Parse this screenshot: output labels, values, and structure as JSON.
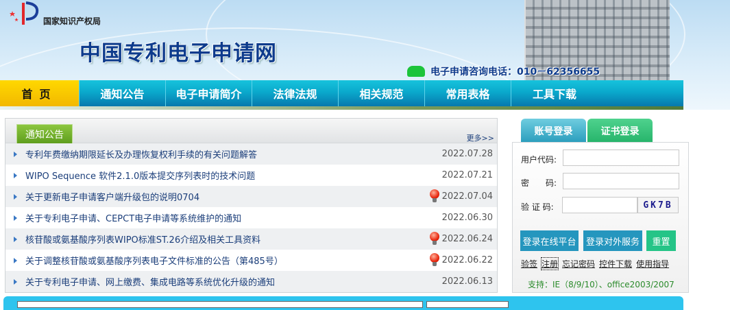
{
  "header": {
    "agency": "国家知识产权局",
    "site_title": "中国专利电子申请网",
    "phone_label": "电子申请咨询电话：010－62356655"
  },
  "nav": {
    "items": [
      {
        "label": "首页"
      },
      {
        "label": "通知公告"
      },
      {
        "label": "电子申请简介"
      },
      {
        "label": "法律法规"
      },
      {
        "label": "相关规范"
      },
      {
        "label": "常用表格"
      },
      {
        "label": "工具下载"
      }
    ]
  },
  "notices": {
    "tab_label": "通知公告",
    "more_label": "更多>>",
    "items": [
      {
        "title": "专利年费缴纳期限延长及办理恢复权利手续的有关问题解答",
        "date": "2022.07.28",
        "new": false
      },
      {
        "title": "WIPO Sequence 软件2.1.0版本提交序列表时的技术问题",
        "date": "2022.07.21",
        "new": false
      },
      {
        "title": "关于更新电子申请客户端升级包的说明0704",
        "date": "2022.07.04",
        "new": true
      },
      {
        "title": "关于专利电子申请、CEPCT电子申请等系统维护的通知",
        "date": "2022.06.30",
        "new": false
      },
      {
        "title": "核苷酸或氨基酸序列表WIPO标准ST.26介绍及相关工具资料",
        "date": "2022.06.24",
        "new": true
      },
      {
        "title": "关于调整核苷酸或氨基酸序列表电子文件标准的公告（第485号）",
        "date": "2022.06.22",
        "new": true
      },
      {
        "title": "关于专利电子申请、网上缴费、集成电路等系统优化升级的通知",
        "date": "2022.06.13",
        "new": false
      }
    ]
  },
  "login": {
    "tab_account": "账号登录",
    "tab_cert": "证书登录",
    "user_label": "用户代码:",
    "password_label": "密　　码:",
    "captcha_label": "验 证 码:",
    "user_value": "",
    "password_value": "",
    "captcha_value": "",
    "captcha_image_text": "GK7B",
    "btn_online": "登录在线平台",
    "btn_external": "登录对外服务",
    "btn_reset": "重置",
    "links": [
      "验签",
      "注册",
      "忘记密码",
      "控件下载",
      "使用指导"
    ],
    "support": "支持：IE（8/9/10）、office2003/2007"
  },
  "colors": {
    "nav": "#0aa9cc",
    "home_tab": "#ffd800",
    "title": "#0d3b8c",
    "green_tab": "#6aa82a",
    "button_blue": "#2596be",
    "button_green": "#25c487"
  }
}
